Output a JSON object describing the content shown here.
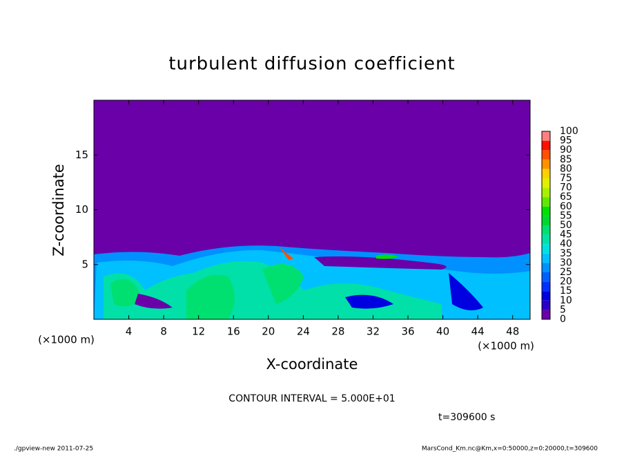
{
  "chart_data": {
    "type": "heatmap",
    "title": "turbulent diffusion coefficient",
    "xlabel": "X-coordinate",
    "ylabel": "Z-coordinate",
    "x_unit": "(×1000 m)",
    "xlim": [
      0,
      50
    ],
    "xticks": [
      4,
      8,
      12,
      16,
      20,
      24,
      28,
      32,
      36,
      40,
      44,
      48
    ],
    "ylim": [
      0,
      20
    ],
    "yticks": [
      5,
      10,
      15
    ],
    "levels": [
      0,
      5,
      10,
      15,
      20,
      25,
      30,
      35,
      40,
      45,
      50,
      55,
      60,
      65,
      70,
      75,
      80,
      85,
      90,
      95,
      100
    ],
    "colors": [
      "#6a00a8",
      "#2800c8",
      "#0000e0",
      "#0030ff",
      "#0060ff",
      "#0090ff",
      "#00c0ff",
      "#00e0e0",
      "#00e0a8",
      "#00e070",
      "#00d830",
      "#00e000",
      "#60e800",
      "#a8f000",
      "#e0f000",
      "#ffd000",
      "#ff9000",
      "#ff5000",
      "#ff1000",
      "#ff8080"
    ],
    "contour_interval": "CONTOUR INTERVAL = 5.000E+01",
    "time": "t=309600 s",
    "footer_left": "./gpview-new   2011-07-25",
    "footer_right": "MarsCond_Km.nc@Km,x=0:50000,z=0:20000,t=309600"
  }
}
